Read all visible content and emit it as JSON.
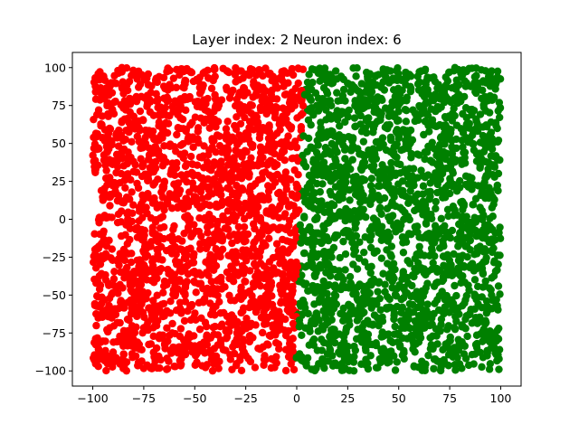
{
  "chart_data": {
    "type": "scatter",
    "title": "Layer index: 2 Neuron index: 6",
    "xlabel": "",
    "ylabel": "",
    "xlim": [
      -110,
      110
    ],
    "ylim": [
      -110,
      110
    ],
    "xticks": [
      -100,
      -75,
      -50,
      -25,
      0,
      25,
      50,
      75,
      100
    ],
    "xtick_labels": [
      "−100",
      "−75",
      "−50",
      "−25",
      "0",
      "25",
      "50",
      "75",
      "100"
    ],
    "yticks": [
      -100,
      -75,
      -50,
      -25,
      0,
      25,
      50,
      75,
      100
    ],
    "ytick_labels": [
      "−100",
      "−75",
      "−50",
      "−25",
      "0",
      "25",
      "50",
      "75",
      "100"
    ],
    "grid": false,
    "legend": "none",
    "series": [
      {
        "color": "#ff0000",
        "region": "x < boundary",
        "x_range": [
          -100,
          5
        ],
        "y_range": [
          -100,
          100
        ]
      },
      {
        "color": "#008000",
        "region": "x > boundary",
        "x_range": [
          -2,
          100
        ],
        "y_range": [
          -100,
          100
        ]
      }
    ],
    "boundary": {
      "top": {
        "x": 4,
        "y": 100
      },
      "bottom": {
        "x": -1,
        "y": -100
      }
    },
    "point_count": 4000
  }
}
